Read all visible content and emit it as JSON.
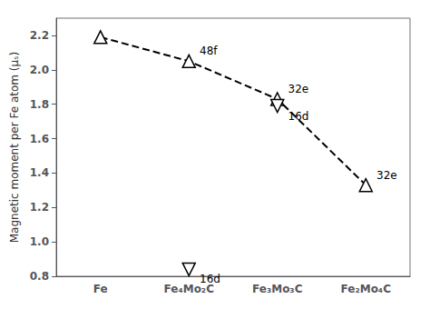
{
  "chart_data": {
    "type": "line",
    "categories": [
      "Fe",
      "Fe₄Mo₂C",
      "Fe₃Mo₃C",
      "Fe₂Mo₄C"
    ],
    "ylabel": "Magnetic moment per Fe atom (μₛ)",
    "ylim": [
      0.8,
      2.3
    ],
    "yticks": [
      0.8,
      {
        "value": 1,
        "label": "1.0"
      },
      1.2,
      1.4,
      1.6,
      1.8,
      {
        "value": 2,
        "label": "2.0"
      },
      2.2
    ],
    "grid": false,
    "series": [
      {
        "type": "line",
        "line_style": "dashed",
        "color": "#000000",
        "values": [
          2.19,
          2.05,
          1.83,
          1.33
        ]
      },
      {
        "type": "scatter",
        "marker": "triangle-up",
        "color": "#000000",
        "values": [
          2.19,
          2.05,
          1.83,
          1.33
        ],
        "point_labels": [
          null,
          "48f",
          "32e",
          "32e"
        ]
      },
      {
        "type": "scatter",
        "marker": "triangle-down",
        "color": "#000000",
        "values": [
          null,
          0.84,
          1.79,
          null
        ],
        "point_labels": [
          null,
          "16d",
          "16d",
          null
        ]
      }
    ]
  }
}
